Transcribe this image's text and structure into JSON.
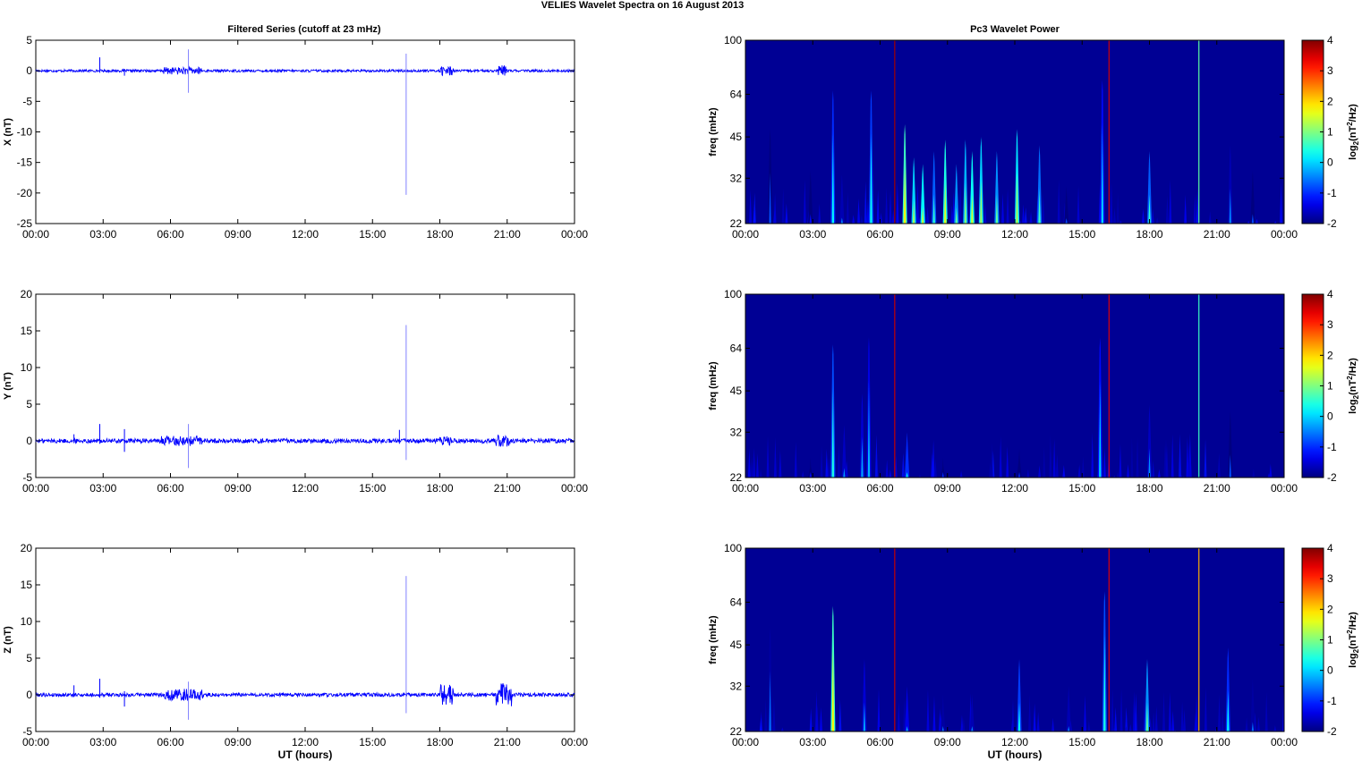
{
  "figure": {
    "title": "VELIES Wavelet Spectra on 16 August    2013",
    "left_title": "Filtered Series (cutoff at 23 mHz)",
    "right_title": "Pc3 Wavelet Power"
  },
  "chart_data": [
    {
      "type": "line",
      "panel": "X",
      "ylabel": "X (nT)",
      "xlabel": "",
      "x_ticks": [
        "00:00",
        "03:00",
        "06:00",
        "09:00",
        "12:00",
        "15:00",
        "18:00",
        "21:00",
        "00:00"
      ],
      "xlim_hours": [
        0,
        24
      ],
      "ylim": [
        -25,
        5
      ],
      "y_ticks": [
        5,
        0,
        -5,
        -10,
        -15,
        -20,
        -25
      ],
      "baseline_noise_amplitude": 0.2,
      "bursts": [
        {
          "from_hours": 5.7,
          "to_hours": 7.4,
          "amplitude": 0.6
        },
        {
          "from_hours": 18.0,
          "to_hours": 18.6,
          "amplitude": 0.8
        },
        {
          "from_hours": 20.6,
          "to_hours": 21.0,
          "amplitude": 0.9
        }
      ],
      "spikes": [
        {
          "x_hours": 2.85,
          "max": 2.2,
          "min": -0.3
        },
        {
          "x_hours": 3.95,
          "max": 0.3,
          "min": -0.8
        },
        {
          "x_hours": 6.8,
          "max": 3.5,
          "min": -3.6
        },
        {
          "x_hours": 16.5,
          "max": 2.8,
          "min": -20.3
        }
      ],
      "color": "#0000ff"
    },
    {
      "type": "line",
      "panel": "Y",
      "ylabel": "Y (nT)",
      "xlabel": "",
      "x_ticks": [
        "00:00",
        "03:00",
        "06:00",
        "09:00",
        "12:00",
        "15:00",
        "18:00",
        "21:00",
        "00:00"
      ],
      "xlim_hours": [
        0,
        24
      ],
      "ylim": [
        -5,
        20
      ],
      "y_ticks": [
        20,
        15,
        10,
        5,
        0,
        -5
      ],
      "baseline_noise_amplitude": 0.3,
      "bursts": [
        {
          "from_hours": 5.6,
          "to_hours": 7.4,
          "amplitude": 0.7
        },
        {
          "from_hours": 18.0,
          "to_hours": 18.5,
          "amplitude": 0.6
        },
        {
          "from_hours": 20.5,
          "to_hours": 21.1,
          "amplitude": 0.9
        }
      ],
      "spikes": [
        {
          "x_hours": 1.7,
          "max": 0.9,
          "min": -0.3
        },
        {
          "x_hours": 2.85,
          "max": 2.3,
          "min": -0.4
        },
        {
          "x_hours": 3.95,
          "max": 1.6,
          "min": -1.5
        },
        {
          "x_hours": 6.8,
          "max": 2.3,
          "min": -3.7
        },
        {
          "x_hours": 16.2,
          "max": 1.5,
          "min": -0.4
        },
        {
          "x_hours": 16.5,
          "max": 15.8,
          "min": -2.6
        }
      ],
      "color": "#0000ff"
    },
    {
      "type": "line",
      "panel": "Z",
      "ylabel": "Z (nT)",
      "xlabel": "UT (hours)",
      "x_ticks": [
        "00:00",
        "03:00",
        "06:00",
        "09:00",
        "12:00",
        "15:00",
        "18:00",
        "21:00",
        "00:00"
      ],
      "xlim_hours": [
        0,
        24
      ],
      "ylim": [
        -5,
        20
      ],
      "y_ticks": [
        20,
        15,
        10,
        5,
        0,
        -5
      ],
      "baseline_noise_amplitude": 0.25,
      "bursts": [
        {
          "from_hours": 5.7,
          "to_hours": 7.5,
          "amplitude": 0.8
        },
        {
          "from_hours": 18.0,
          "to_hours": 18.6,
          "amplitude": 1.4
        },
        {
          "from_hours": 20.5,
          "to_hours": 21.2,
          "amplitude": 1.6
        }
      ],
      "spikes": [
        {
          "x_hours": 1.7,
          "max": 1.3,
          "min": -0.3
        },
        {
          "x_hours": 2.85,
          "max": 2.2,
          "min": -0.4
        },
        {
          "x_hours": 3.95,
          "max": 0.5,
          "min": -1.6
        },
        {
          "x_hours": 6.8,
          "max": 1.8,
          "min": -3.4
        },
        {
          "x_hours": 16.5,
          "max": 16.2,
          "min": -2.5
        }
      ],
      "color": "#0000ff"
    },
    {
      "type": "heatmap",
      "panel": "X",
      "ylabel": "freq (mHz)",
      "xlabel": "",
      "x_ticks": [
        "00:00",
        "03:00",
        "06:00",
        "09:00",
        "12:00",
        "15:00",
        "18:00",
        "21:00",
        "00:00"
      ],
      "xlim_hours": [
        0,
        24
      ],
      "y_scale": "log",
      "ylim_mHz": [
        22,
        100
      ],
      "y_ticks": [
        100,
        64,
        45,
        32,
        22
      ],
      "colorbar_label": "log2(nT2/Hz)",
      "colorbar_ticks": [
        4,
        3,
        2,
        1,
        0,
        -1,
        -2
      ],
      "clim": [
        -2,
        4
      ],
      "colormap": "jet",
      "features": [
        {
          "x_hours": 1.1,
          "top_mHz": 48,
          "value": -0.8
        },
        {
          "x_hours": 2.9,
          "top_mHz": 34,
          "value": -1.2
        },
        {
          "x_hours": 3.9,
          "top_mHz": 66,
          "value": 0.2
        },
        {
          "x_hours": 4.3,
          "top_mHz": 33,
          "value": -0.5
        },
        {
          "x_hours": 5.6,
          "top_mHz": 66,
          "value": 0.3
        },
        {
          "x_hours": 6.65,
          "top_mHz": 100,
          "value": 3.8
        },
        {
          "x_hours": 7.1,
          "top_mHz": 50,
          "value": 1.8
        },
        {
          "x_hours": 7.5,
          "top_mHz": 38,
          "value": 1.2
        },
        {
          "x_hours": 7.9,
          "top_mHz": 36,
          "value": 1.4
        },
        {
          "x_hours": 8.4,
          "top_mHz": 40,
          "value": 0.5
        },
        {
          "x_hours": 8.9,
          "top_mHz": 44,
          "value": 1.6
        },
        {
          "x_hours": 9.4,
          "top_mHz": 36,
          "value": 0.8
        },
        {
          "x_hours": 9.8,
          "top_mHz": 44,
          "value": 1.0
        },
        {
          "x_hours": 10.1,
          "top_mHz": 40,
          "value": 1.5
        },
        {
          "x_hours": 10.5,
          "top_mHz": 45,
          "value": 1.2
        },
        {
          "x_hours": 11.2,
          "top_mHz": 40,
          "value": 0.8
        },
        {
          "x_hours": 12.1,
          "top_mHz": 48,
          "value": 1.3
        },
        {
          "x_hours": 13.1,
          "top_mHz": 42,
          "value": 0.6
        },
        {
          "x_hours": 14.3,
          "top_mHz": 30,
          "value": -0.8
        },
        {
          "x_hours": 15.9,
          "top_mHz": 72,
          "value": 0.0
        },
        {
          "x_hours": 16.2,
          "top_mHz": 100,
          "value": 3.5
        },
        {
          "x_hours": 18.0,
          "top_mHz": 40,
          "value": 0.5
        },
        {
          "x_hours": 20.2,
          "top_mHz": 100,
          "value": 0.8
        },
        {
          "x_hours": 21.6,
          "top_mHz": 42,
          "value": -0.5
        },
        {
          "x_hours": 22.6,
          "top_mHz": 34,
          "value": -0.8
        }
      ]
    },
    {
      "type": "heatmap",
      "panel": "Y",
      "ylabel": "freq (mHz)",
      "xlabel": "",
      "x_ticks": [
        "00:00",
        "03:00",
        "06:00",
        "09:00",
        "12:00",
        "15:00",
        "18:00",
        "21:00",
        "00:00"
      ],
      "xlim_hours": [
        0,
        24
      ],
      "y_scale": "log",
      "ylim_mHz": [
        22,
        100
      ],
      "y_ticks": [
        100,
        64,
        45,
        32,
        22
      ],
      "colorbar_label": "log2(nT2/Hz)",
      "colorbar_ticks": [
        4,
        3,
        2,
        1,
        0,
        -1,
        -2
      ],
      "clim": [
        -2,
        4
      ],
      "colormap": "jet",
      "features": [
        {
          "x_hours": 2.9,
          "top_mHz": 26,
          "value": -1.2
        },
        {
          "x_hours": 3.9,
          "top_mHz": 66,
          "value": 0.4
        },
        {
          "x_hours": 4.4,
          "top_mHz": 34,
          "value": -0.4
        },
        {
          "x_hours": 5.2,
          "top_mHz": 44,
          "value": -0.3
        },
        {
          "x_hours": 5.5,
          "top_mHz": 70,
          "value": -0.2
        },
        {
          "x_hours": 6.65,
          "top_mHz": 100,
          "value": 3.6
        },
        {
          "x_hours": 7.2,
          "top_mHz": 32,
          "value": 0.2
        },
        {
          "x_hours": 8.8,
          "top_mHz": 26,
          "value": -1.0
        },
        {
          "x_hours": 12.2,
          "top_mHz": 28,
          "value": -1.0
        },
        {
          "x_hours": 15.8,
          "top_mHz": 70,
          "value": 0.0
        },
        {
          "x_hours": 16.2,
          "top_mHz": 100,
          "value": 3.4
        },
        {
          "x_hours": 18.0,
          "top_mHz": 40,
          "value": -0.4
        },
        {
          "x_hours": 20.2,
          "top_mHz": 100,
          "value": 0.6
        },
        {
          "x_hours": 21.6,
          "top_mHz": 38,
          "value": -0.8
        }
      ]
    },
    {
      "type": "heatmap",
      "panel": "Z",
      "ylabel": "freq (mHz)",
      "xlabel": "UT (hours)",
      "x_ticks": [
        "00:00",
        "03:00",
        "06:00",
        "09:00",
        "12:00",
        "15:00",
        "18:00",
        "21:00",
        "00:00"
      ],
      "xlim_hours": [
        0,
        24
      ],
      "y_scale": "log",
      "ylim_mHz": [
        22,
        100
      ],
      "y_ticks": [
        100,
        64,
        45,
        32,
        22
      ],
      "colorbar_label": "log2(nT2/Hz)",
      "colorbar_ticks": [
        4,
        3,
        2,
        1,
        0,
        -1,
        -2
      ],
      "clim": [
        -2,
        4
      ],
      "colormap": "jet",
      "features": [
        {
          "x_hours": 1.1,
          "top_mHz": 52,
          "value": -0.6
        },
        {
          "x_hours": 3.9,
          "top_mHz": 62,
          "value": 1.8
        },
        {
          "x_hours": 5.3,
          "top_mHz": 40,
          "value": -0.3
        },
        {
          "x_hours": 6.65,
          "top_mHz": 100,
          "value": 3.6
        },
        {
          "x_hours": 7.2,
          "top_mHz": 32,
          "value": -0.2
        },
        {
          "x_hours": 8.8,
          "top_mHz": 30,
          "value": -0.6
        },
        {
          "x_hours": 10.1,
          "top_mHz": 30,
          "value": -0.5
        },
        {
          "x_hours": 12.2,
          "top_mHz": 40,
          "value": 0.3
        },
        {
          "x_hours": 14.4,
          "top_mHz": 32,
          "value": -0.5
        },
        {
          "x_hours": 16.0,
          "top_mHz": 70,
          "value": 0.4
        },
        {
          "x_hours": 16.2,
          "top_mHz": 100,
          "value": 3.4
        },
        {
          "x_hours": 17.9,
          "top_mHz": 40,
          "value": 0.8
        },
        {
          "x_hours": 20.2,
          "top_mHz": 100,
          "value": 2.2
        },
        {
          "x_hours": 21.5,
          "top_mHz": 44,
          "value": 0.2
        },
        {
          "x_hours": 22.6,
          "top_mHz": 34,
          "value": -0.6
        }
      ]
    }
  ]
}
